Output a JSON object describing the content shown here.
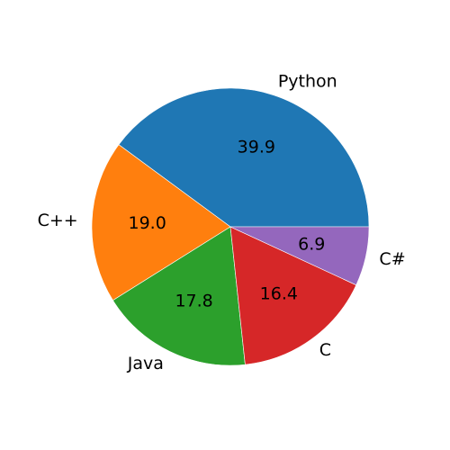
{
  "chart_data": {
    "type": "pie",
    "labels": [
      "Python",
      "C++",
      "Java",
      "C",
      "C#"
    ],
    "values": [
      39.9,
      19.0,
      17.8,
      16.4,
      6.9
    ],
    "value_labels": [
      "39.9",
      "19.0",
      "17.8",
      "16.4",
      "6.9"
    ],
    "colors": [
      "#1f77b4",
      "#ff7f0e",
      "#2ca02c",
      "#d62728",
      "#9467bd"
    ],
    "start_angle_deg": 0,
    "direction": "counterclockwise",
    "legend": "none"
  }
}
